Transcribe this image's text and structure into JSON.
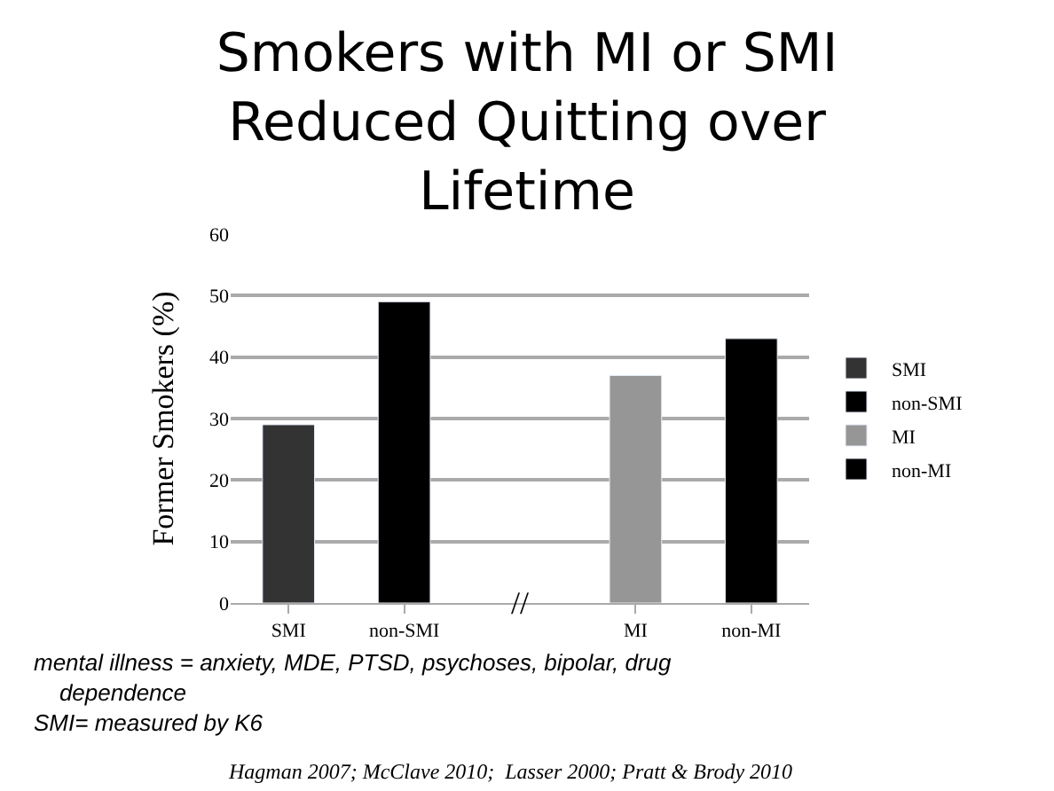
{
  "chart_data": {
    "type": "bar",
    "title": "Smokers with MI or SMI\nReduced Quitting over\nLifetime",
    "ylabel": "Former Smokers (%)",
    "categories": [
      "SMI",
      "non-SMI",
      null,
      "MI",
      "non-MI"
    ],
    "series": [
      {
        "name": "SMI",
        "color": "#333333",
        "values": [
          29,
          null,
          null,
          null,
          null
        ]
      },
      {
        "name": "non-SMI",
        "color": "#000000",
        "values": [
          null,
          49,
          null,
          null,
          null
        ]
      },
      {
        "name": "MI",
        "color": "#969696",
        "values": [
          null,
          null,
          null,
          37,
          null
        ]
      },
      {
        "name": "non-MI",
        "color": "#000000",
        "values": [
          null,
          null,
          null,
          null,
          43
        ]
      }
    ],
    "ylim": [
      0,
      60
    ],
    "yticks": [
      0,
      10,
      20,
      30,
      40,
      50,
      60
    ],
    "grid": "y",
    "legend": "right",
    "annotations": [
      "//",
      "mental illness = anxiety, MDE, PTSD, psychoses, bipolar, drug\n    dependence",
      "SMI= measured by K6",
      "Hagman 2007; McClave 2010;  Lasser 2000; Pratt & Brody 2010"
    ]
  }
}
